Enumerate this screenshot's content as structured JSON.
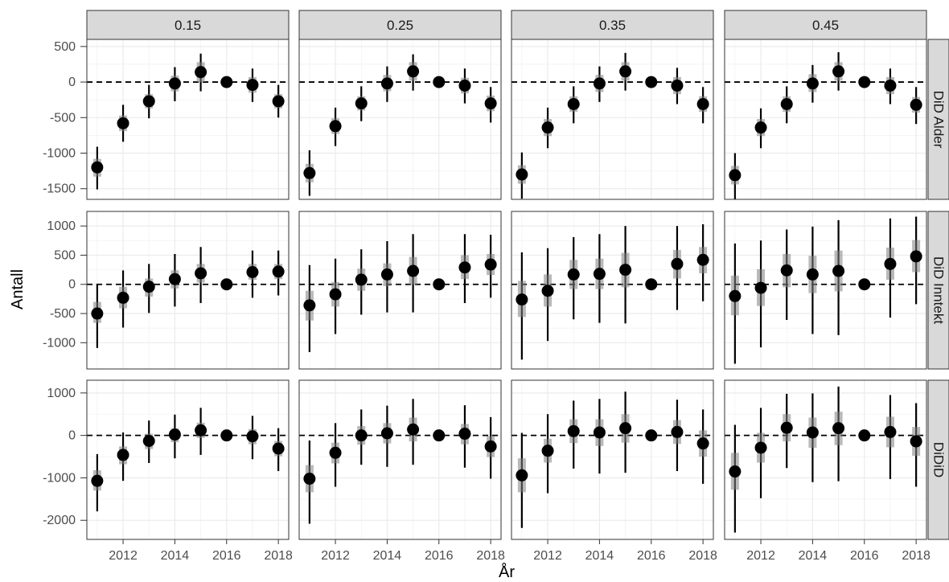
{
  "chart_data": {
    "type": "scatter",
    "subtype": "faceted point estimates with confidence intervals",
    "xlabel": "År",
    "ylabel": "Antall",
    "col_facets": [
      "0.15",
      "0.25",
      "0.35",
      "0.45"
    ],
    "row_facets": [
      "DiD Alder",
      "DiD Inntekt",
      "DiDiD"
    ],
    "x": [
      2011,
      2012,
      2013,
      2014,
      2015,
      2016,
      2017,
      2018
    ],
    "x_ticks": [
      2012,
      2014,
      2016,
      2018
    ],
    "xlim": [
      2010.6,
      2018.4
    ],
    "reference_line": 0,
    "grid": true,
    "rows": [
      {
        "name": "DiD Alder",
        "ylim": [
          -1650,
          600
        ],
        "y_ticks": [
          500,
          0,
          -500,
          -1000,
          -1500
        ],
        "panels": [
          {
            "facet": "0.15",
            "estimate": [
              -1200,
              -580,
              -270,
              -20,
              140,
              0,
              -40,
              -270
            ],
            "ci95_low": [
              -1510,
              -840,
              -510,
              -270,
              -130,
              0,
              -280,
              -500
            ],
            "ci95_high": [
              -910,
              -320,
              -40,
              210,
              400,
              0,
              190,
              -40
            ],
            "ci90_low": [
              -1330,
              -690,
              -370,
              -130,
              0,
              0,
              -150,
              -370
            ],
            "ci90_high": [
              -1080,
              -470,
              -170,
              90,
              280,
              0,
              70,
              -170
            ]
          },
          {
            "facet": "0.25",
            "estimate": [
              -1280,
              -620,
              -300,
              -20,
              150,
              0,
              -50,
              -300
            ],
            "ci95_low": [
              -1600,
              -900,
              -550,
              -280,
              -120,
              0,
              -300,
              -570
            ],
            "ci95_high": [
              -960,
              -360,
              -60,
              220,
              390,
              0,
              190,
              -70
            ],
            "ci90_low": [
              -1410,
              -730,
              -400,
              -130,
              20,
              0,
              -160,
              -410
            ],
            "ci90_high": [
              -1150,
              -510,
              -200,
              100,
              280,
              0,
              60,
              -190
            ]
          },
          {
            "facet": "0.35",
            "estimate": [
              -1300,
              -640,
              -310,
              -20,
              150,
              0,
              -50,
              -310
            ],
            "ci95_low": [
              -1640,
              -930,
              -580,
              -280,
              -120,
              0,
              -310,
              -580
            ],
            "ci95_high": [
              -990,
              -360,
              -60,
              220,
              410,
              0,
              200,
              -70
            ],
            "ci90_low": [
              -1430,
              -760,
              -420,
              -140,
              20,
              0,
              -170,
              -420
            ],
            "ci90_high": [
              -1170,
              -520,
              -200,
              100,
              280,
              0,
              70,
              -200
            ]
          },
          {
            "facet": "0.45",
            "estimate": [
              -1310,
              -640,
              -310,
              -20,
              150,
              0,
              -50,
              -320
            ],
            "ci95_low": [
              -1650,
              -930,
              -580,
              -290,
              -120,
              0,
              -310,
              -590
            ],
            "ci95_high": [
              -1000,
              -370,
              -60,
              240,
              420,
              0,
              190,
              -70
            ],
            "ci90_low": [
              -1440,
              -760,
              -420,
              -140,
              20,
              0,
              -170,
              -430
            ],
            "ci90_high": [
              -1180,
              -520,
              -200,
              110,
              280,
              0,
              70,
              -210
            ]
          }
        ]
      },
      {
        "name": "DiD Inntekt",
        "ylim": [
          -1450,
          1250
        ],
        "y_ticks": [
          1000,
          500,
          0,
          -500,
          -1000
        ],
        "panels": [
          {
            "facet": "0.15",
            "estimate": [
              -500,
              -230,
              -40,
              90,
              190,
              0,
              210,
              220
            ],
            "ci95_low": [
              -1090,
              -740,
              -490,
              -380,
              -320,
              0,
              -230,
              -190
            ],
            "ci95_high": [
              10,
              240,
              350,
              520,
              640,
              0,
              580,
              580
            ],
            "ci90_low": [
              -660,
              -410,
              -210,
              -70,
              30,
              0,
              80,
              90
            ],
            "ci90_high": [
              -300,
              -40,
              100,
              240,
              350,
              0,
              350,
              350
            ]
          },
          {
            "facet": "0.25",
            "estimate": [
              -360,
              -170,
              80,
              170,
              230,
              0,
              290,
              340
            ],
            "ci95_low": [
              -1160,
              -850,
              -520,
              -480,
              -480,
              0,
              -320,
              -230
            ],
            "ci95_high": [
              330,
              440,
              600,
              740,
              860,
              0,
              860,
              850
            ],
            "ci90_low": [
              -620,
              -380,
              -110,
              -30,
              0,
              0,
              90,
              160
            ],
            "ci90_high": [
              -110,
              40,
              270,
              360,
              470,
              0,
              500,
              520
            ]
          },
          {
            "facet": "0.35",
            "estimate": [
              -260,
              -110,
              170,
              180,
              250,
              0,
              350,
              420
            ],
            "ci95_low": [
              -1290,
              -970,
              -600,
              -660,
              -670,
              0,
              -440,
              -290
            ],
            "ci95_high": [
              550,
              620,
              810,
              860,
              1000,
              0,
              1000,
              1030
            ],
            "ci90_low": [
              -560,
              -380,
              -80,
              -80,
              -50,
              0,
              100,
              190
            ],
            "ci90_high": [
              60,
              170,
              420,
              440,
              540,
              0,
              590,
              640
            ]
          },
          {
            "facet": "0.45",
            "estimate": [
              -200,
              -60,
              240,
              170,
              230,
              0,
              350,
              480
            ],
            "ci95_low": [
              -1360,
              -1080,
              -610,
              -850,
              -870,
              0,
              -570,
              -340
            ],
            "ci95_high": [
              700,
              750,
              940,
              990,
              1100,
              0,
              1130,
              1160
            ],
            "ci90_low": [
              -530,
              -370,
              -50,
              -150,
              -120,
              0,
              80,
              210
            ],
            "ci90_high": [
              150,
              260,
              520,
              490,
              580,
              0,
              630,
              760
            ]
          }
        ]
      },
      {
        "name": "DiDiD",
        "ylim": [
          -2450,
          1300
        ],
        "y_ticks": [
          1000,
          0,
          -1000,
          -2000
        ],
        "panels": [
          {
            "facet": "0.15",
            "estimate": [
              -1070,
              -460,
              -130,
              20,
              120,
              0,
              -20,
              -310
            ],
            "ci95_low": [
              -1790,
              -1070,
              -650,
              -540,
              -460,
              0,
              -560,
              -840
            ],
            "ci95_high": [
              -440,
              70,
              350,
              490,
              650,
              0,
              460,
              170
            ],
            "ci90_low": [
              -1300,
              -680,
              -320,
              -160,
              -60,
              0,
              -210,
              -490
            ],
            "ci90_high": [
              -820,
              -260,
              40,
              170,
              300,
              0,
              150,
              -130
            ]
          },
          {
            "facet": "0.25",
            "estimate": [
              -1020,
              -410,
              0,
              50,
              140,
              0,
              40,
              -260
            ],
            "ci95_low": [
              -2080,
              -1210,
              -690,
              -740,
              -690,
              0,
              -760,
              -1020
            ],
            "ci95_high": [
              -120,
              290,
              610,
              700,
              860,
              0,
              710,
              430
            ],
            "ci90_low": [
              -1340,
              -660,
              -220,
              -190,
              -140,
              0,
              -210,
              -510
            ],
            "ci90_high": [
              -700,
              -170,
              220,
              290,
              420,
              0,
              270,
              -20
            ]
          },
          {
            "facet": "0.35",
            "estimate": [
              -940,
              -360,
              100,
              70,
              170,
              0,
              80,
              -190
            ],
            "ci95_low": [
              -2180,
              -1360,
              -780,
              -900,
              -880,
              0,
              -840,
              -1140
            ],
            "ci95_high": [
              60,
              500,
              820,
              860,
              1030,
              0,
              840,
              610
            ],
            "ci90_low": [
              -1340,
              -640,
              -180,
              -250,
              -170,
              0,
              -200,
              -500
            ],
            "ci90_high": [
              -540,
              -80,
              380,
              380,
              500,
              0,
              360,
              120
            ]
          },
          {
            "facet": "0.45",
            "estimate": [
              -850,
              -290,
              180,
              70,
              170,
              0,
              80,
              -140
            ],
            "ci95_low": [
              -2290,
              -1480,
              -770,
              -1100,
              -1080,
              0,
              -1030,
              -1210
            ],
            "ci95_high": [
              250,
              650,
              980,
              990,
              1150,
              0,
              950,
              760
            ],
            "ci90_low": [
              -1280,
              -640,
              -140,
              -290,
              -230,
              0,
              -280,
              -480
            ],
            "ci90_high": [
              -410,
              60,
              500,
              420,
              560,
              0,
              440,
              200
            ]
          }
        ]
      }
    ]
  }
}
